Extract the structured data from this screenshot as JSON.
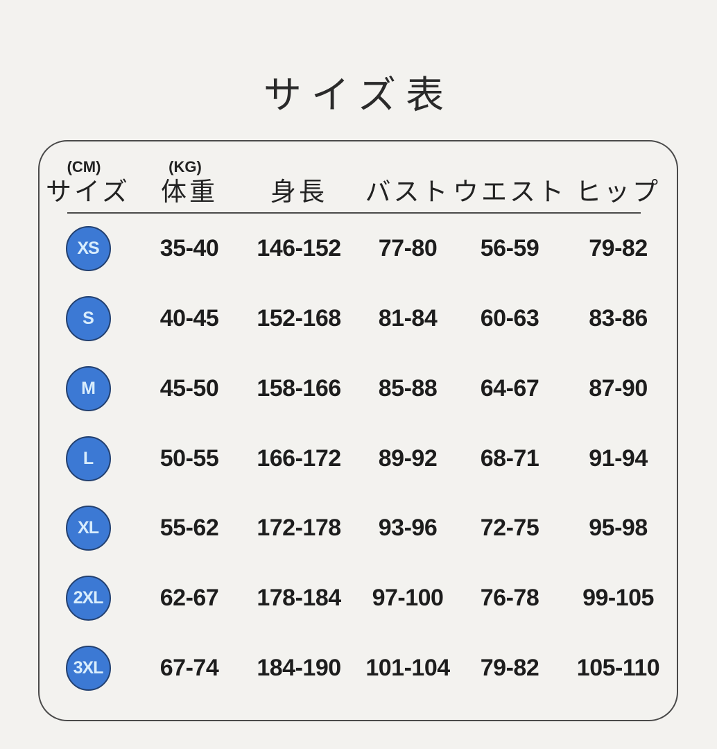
{
  "title": "サイズ表",
  "chart_data": {
    "type": "table",
    "title": "サイズ表",
    "columns": [
      {
        "unit": "(CM)",
        "label": "サイズ"
      },
      {
        "unit": "(KG)",
        "label": "体重"
      },
      {
        "unit": "",
        "label": "身長"
      },
      {
        "unit": "",
        "label": "バスト"
      },
      {
        "unit": "",
        "label": "ウエスト"
      },
      {
        "unit": "",
        "label": "ヒップ"
      }
    ],
    "rows": [
      {
        "size": "XS",
        "weight": "35-40",
        "height": "146-152",
        "bust": "77-80",
        "waist": "56-59",
        "hip": "79-82"
      },
      {
        "size": "S",
        "weight": "40-45",
        "height": "152-168",
        "bust": "81-84",
        "waist": "60-63",
        "hip": "83-86"
      },
      {
        "size": "M",
        "weight": "45-50",
        "height": "158-166",
        "bust": "85-88",
        "waist": "64-67",
        "hip": "87-90"
      },
      {
        "size": "L",
        "weight": "50-55",
        "height": "166-172",
        "bust": "89-92",
        "waist": "68-71",
        "hip": "91-94"
      },
      {
        "size": "XL",
        "weight": "55-62",
        "height": "172-178",
        "bust": "93-96",
        "waist": "72-75",
        "hip": "95-98"
      },
      {
        "size": "2XL",
        "weight": "62-67",
        "height": "178-184",
        "bust": "97-100",
        "waist": "76-78",
        "hip": "99-105"
      },
      {
        "size": "3XL",
        "weight": "67-74",
        "height": "184-190",
        "bust": "101-104",
        "waist": "79-82",
        "hip": "105-110"
      }
    ]
  },
  "colors": {
    "page_background": "#f3f2ef",
    "box_border": "#4a4a4a",
    "badge_fill": "#3c79d4",
    "badge_border": "#23406f",
    "badge_text": "#d9edfc",
    "value_text": "#1d1d1d"
  }
}
